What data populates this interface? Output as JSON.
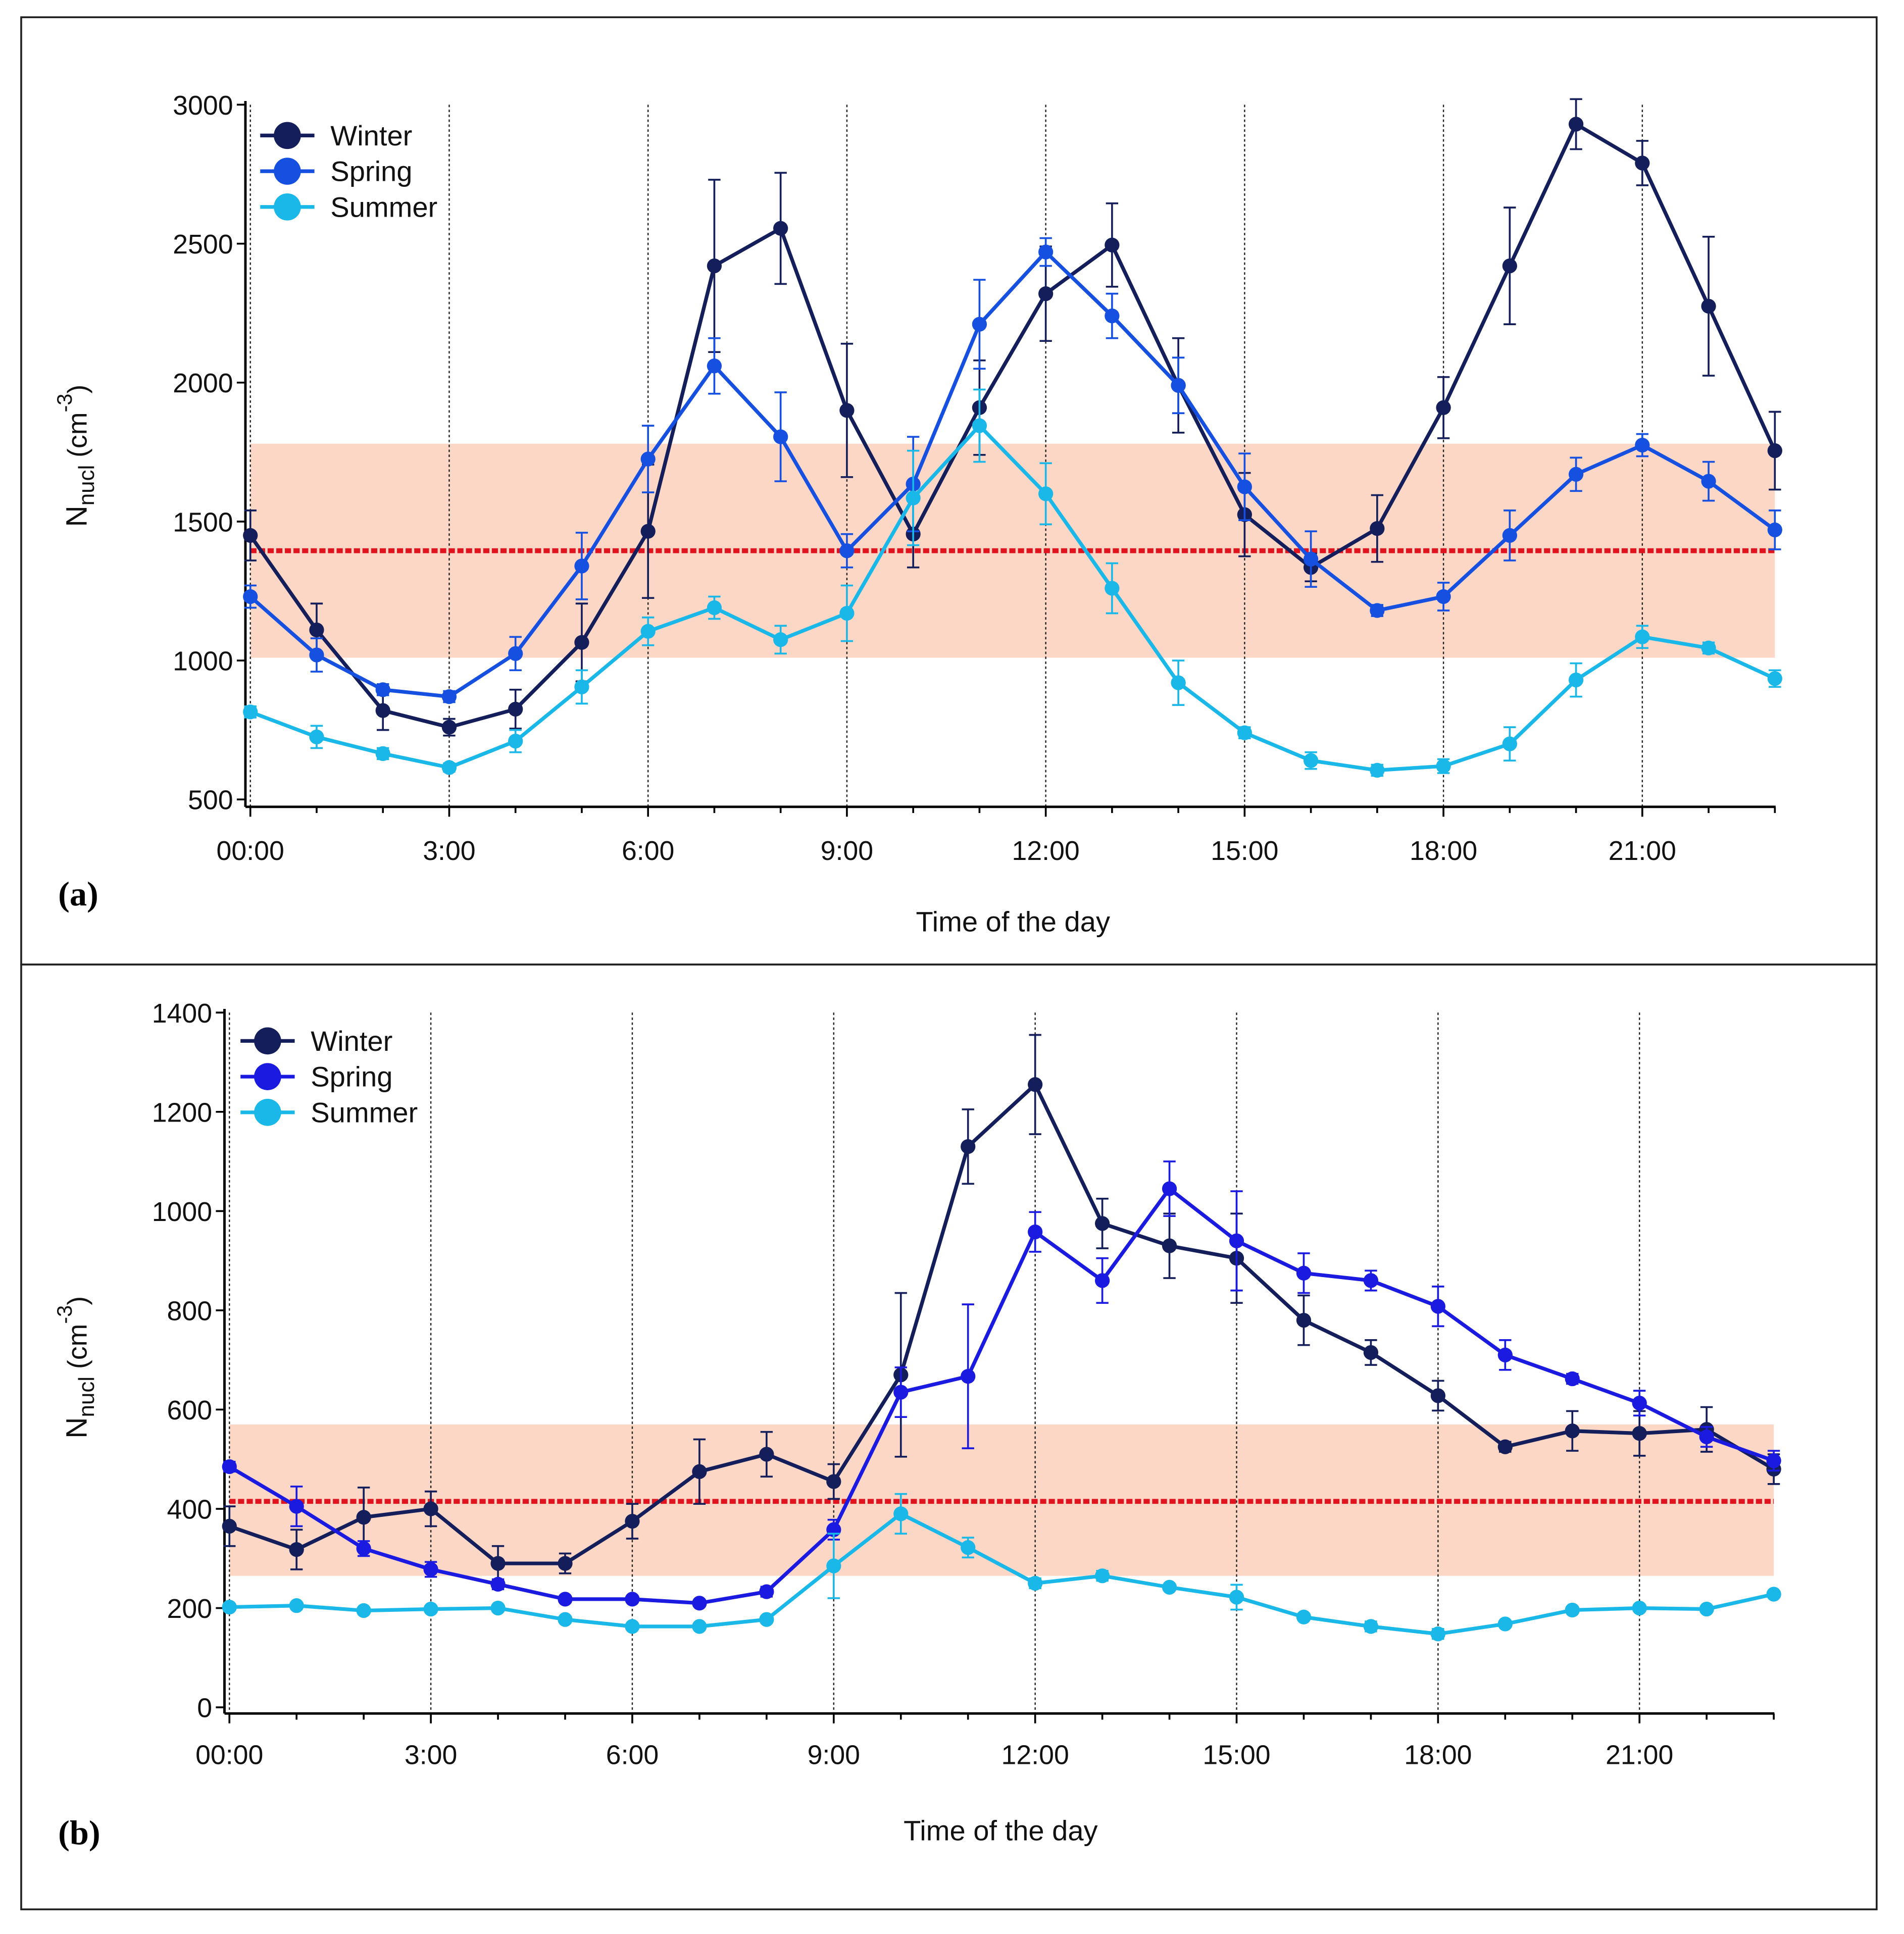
{
  "chart_data": [
    {
      "type": "line",
      "panel_label": "(a)",
      "xlabel": "Time of the day",
      "ylabel": "Nnucl (cm-3)",
      "ylabel_main": "N",
      "ylabel_sub": "nucl",
      "ylabel_unit": " (cm",
      "ylabel_sup": "-3",
      "ylabel_close": ")",
      "x": [
        0,
        1,
        2,
        3,
        4,
        5,
        6,
        7,
        8,
        9,
        10,
        11,
        12,
        13,
        14,
        15,
        16,
        17,
        18,
        19,
        20,
        21,
        22,
        23
      ],
      "xticks": [
        0,
        3,
        6,
        9,
        12,
        15,
        18,
        21
      ],
      "xtick_labels": [
        "00:00",
        "3:00",
        "6:00",
        "9:00",
        "12:00",
        "15:00",
        "18:00",
        "21:00"
      ],
      "ylim": [
        500,
        3000
      ],
      "yticks": [
        500,
        1000,
        1500,
        2000,
        2500,
        3000
      ],
      "ytick_labels": [
        "500",
        "1000",
        "1500",
        "2000",
        "2500",
        "3000"
      ],
      "grid": "vertical dotted lines every 3 hours",
      "legend": "top-left",
      "reference_line": 1395,
      "reference_band": [
        1010,
        1780
      ],
      "series": [
        {
          "name": "Winter",
          "color": "#141e5a",
          "values": [
            1450,
            1110,
            820,
            760,
            825,
            1065,
            1465,
            2420,
            2555,
            1900,
            1455,
            1910,
            2320,
            2495,
            1990,
            1525,
            1335,
            1475,
            1910,
            2420,
            2930,
            2790,
            2275,
            1755
          ],
          "errors": [
            90,
            95,
            70,
            30,
            70,
            140,
            240,
            310,
            200,
            240,
            120,
            170,
            170,
            150,
            170,
            150,
            50,
            120,
            110,
            210,
            90,
            80,
            250,
            140
          ]
        },
        {
          "name": "Spring",
          "color": "#1650e0",
          "values": [
            1230,
            1020,
            895,
            870,
            1025,
            1340,
            1725,
            2060,
            1805,
            1395,
            1635,
            2210,
            2470,
            2240,
            1990,
            1625,
            1365,
            1180,
            1230,
            1450,
            1670,
            1775,
            1645,
            1470
          ],
          "errors": [
            40,
            60,
            20,
            20,
            60,
            120,
            120,
            100,
            160,
            60,
            170,
            160,
            50,
            80,
            100,
            120,
            100,
            20,
            50,
            90,
            60,
            40,
            70,
            70
          ]
        },
        {
          "name": "Summer",
          "color": "#1ab8e8",
          "values": [
            815,
            725,
            665,
            615,
            710,
            905,
            1105,
            1190,
            1075,
            1170,
            1585,
            1845,
            1600,
            1260,
            920,
            740,
            640,
            605,
            620,
            700,
            930,
            1085,
            1045,
            935
          ],
          "errors": [
            20,
            40,
            20,
            15,
            40,
            60,
            50,
            40,
            50,
            100,
            170,
            130,
            110,
            90,
            80,
            20,
            30,
            20,
            25,
            60,
            60,
            40,
            20,
            30
          ]
        }
      ]
    },
    {
      "type": "line",
      "panel_label": "(b)",
      "xlabel": "Time of the day",
      "ylabel": "Nnucl (cm-3)",
      "ylabel_main": "N",
      "ylabel_sub": "nucl",
      "ylabel_unit": " (cm",
      "ylabel_sup": "-3",
      "ylabel_close": ")",
      "x": [
        0,
        1,
        2,
        3,
        4,
        5,
        6,
        7,
        8,
        9,
        10,
        11,
        12,
        13,
        14,
        15,
        16,
        17,
        18,
        19,
        20,
        21,
        22,
        23
      ],
      "xticks": [
        0,
        3,
        6,
        9,
        12,
        15,
        18,
        21
      ],
      "xtick_labels": [
        "00:00",
        "3:00",
        "6:00",
        "9:00",
        "12:00",
        "15:00",
        "18:00",
        "21:00"
      ],
      "ylim": [
        0,
        1400
      ],
      "yticks": [
        0,
        200,
        400,
        600,
        800,
        1000,
        1200,
        1400
      ],
      "ytick_labels": [
        "0",
        "200",
        "400",
        "600",
        "800",
        "1000",
        "1200",
        "1400"
      ],
      "grid": "vertical dotted lines every 3 hours",
      "legend": "top-left",
      "reference_line": 415,
      "reference_band": [
        265,
        570
      ],
      "series": [
        {
          "name": "Winter",
          "color": "#141e5a",
          "values": [
            365,
            318,
            383,
            400,
            290,
            290,
            375,
            475,
            510,
            455,
            670,
            1130,
            1255,
            975,
            930,
            905,
            780,
            715,
            628,
            525,
            557,
            552,
            560,
            480
          ],
          "errors": [
            40,
            40,
            60,
            35,
            35,
            20,
            35,
            65,
            45,
            35,
            165,
            75,
            100,
            50,
            65,
            90,
            50,
            25,
            30,
            10,
            40,
            45,
            45,
            30
          ]
        },
        {
          "name": "Spring",
          "color": "#1a1ae0",
          "values": [
            485,
            405,
            320,
            278,
            248,
            218,
            218,
            210,
            233,
            358,
            635,
            667,
            958,
            860,
            1045,
            940,
            875,
            860,
            808,
            710,
            662,
            613,
            545,
            497
          ],
          "errors": [
            10,
            40,
            15,
            15,
            10,
            5,
            5,
            5,
            10,
            20,
            50,
            145,
            40,
            45,
            55,
            100,
            40,
            20,
            40,
            30,
            10,
            25,
            20,
            20
          ]
        },
        {
          "name": "Summer",
          "color": "#1ab8e8",
          "values": [
            202,
            205,
            195,
            198,
            200,
            177,
            163,
            163,
            177,
            285,
            390,
            322,
            250,
            265,
            242,
            222,
            182,
            163,
            148,
            168,
            196,
            200,
            198,
            228
          ],
          "errors": [
            5,
            5,
            5,
            5,
            5,
            5,
            5,
            5,
            5,
            65,
            40,
            20,
            10,
            10,
            5,
            25,
            5,
            10,
            10,
            5,
            5,
            5,
            5,
            5
          ]
        }
      ]
    }
  ]
}
